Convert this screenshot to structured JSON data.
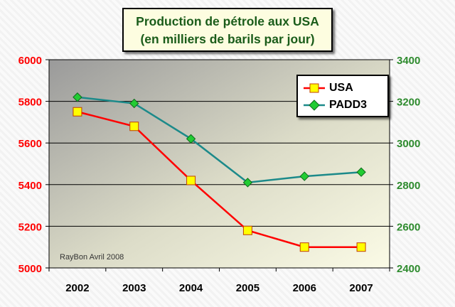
{
  "title": {
    "line1": "Production de pétrole aux USA",
    "line2": "(en milliers de barils par jour)"
  },
  "credit": "RayBon Avril 2008",
  "colors": {
    "usa_line": "#ff0000",
    "usa_marker": "#ffff00",
    "padd3_line": "#1c8a8a",
    "padd3_marker": "#22cc33",
    "left_axis_text": "#ff0000",
    "right_axis_text": "#2e8b2e",
    "title_text": "#1a5c1a"
  },
  "chart_data": {
    "type": "line",
    "categories": [
      "2002",
      "2003",
      "2004",
      "2005",
      "2006",
      "2007"
    ],
    "series": [
      {
        "name": "USA",
        "axis": "left",
        "values": [
          5750,
          5680,
          5420,
          5180,
          5100,
          5100
        ]
      },
      {
        "name": "PADD3",
        "axis": "right",
        "values": [
          3220,
          3190,
          3020,
          2810,
          2840,
          2860
        ]
      }
    ],
    "y_left": {
      "min": 5000,
      "max": 6000,
      "ticks": [
        "5000",
        "5200",
        "5400",
        "5600",
        "5800",
        "6000"
      ]
    },
    "y_right": {
      "min": 2400,
      "max": 3400,
      "ticks": [
        "2400",
        "2600",
        "2800",
        "3000",
        "3200",
        "3400"
      ]
    },
    "grid": true,
    "legend_position": "top-right"
  }
}
